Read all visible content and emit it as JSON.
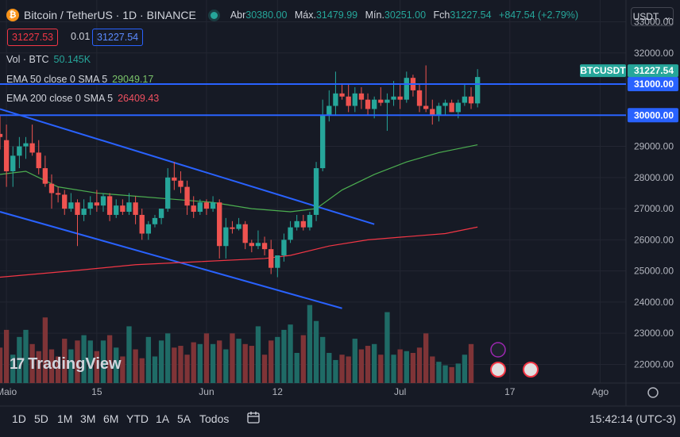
{
  "header": {
    "symbol": "Bitcoin / TetherUS · 1D · BINANCE",
    "open_label": "Abr",
    "open": "30380.00",
    "high_label": "Máx.",
    "high": "31479.99",
    "low_label": "Mín.",
    "low": "30251.00",
    "close_label": "Fch",
    "close": "31227.54",
    "change": "+847.54 (+2.79%)",
    "coin_glyph": "₿"
  },
  "trade": {
    "sell": "31227.53",
    "spread": "0.01",
    "buy": "31227.54"
  },
  "indicators": {
    "vol_name": "Vol · BTC",
    "vol_value": "50.145K",
    "ema50_name": "EMA 50 close 0 SMA 5",
    "ema50_value": "29049.17",
    "ema200_name": "EMA 200 close 0 SMA 5",
    "ema200_value": "26409.43"
  },
  "currency_button": "USDT",
  "timeframes": [
    "1D",
    "5D",
    "1M",
    "3M",
    "6M",
    "YTD",
    "1A",
    "5A",
    "Todos"
  ],
  "clock": "15:42:14 (UTC-3)",
  "logo_text": "TradingView",
  "logo_mark": "17",
  "colors": {
    "up": "#26a69a",
    "down": "#ef5350",
    "accent": "#2962ff",
    "ema50": "#4caf50",
    "ema200": "#f23645"
  },
  "chart_data": {
    "type": "candlestick",
    "title": "Bitcoin / TetherUS · 1D · BINANCE",
    "y_ticks": [
      22000,
      23000,
      24000,
      25000,
      26000,
      27000,
      28000,
      29000,
      30000,
      31000,
      32000,
      33000
    ],
    "y_tick_labels": [
      "22000.00",
      "23000.00",
      "24000.00",
      "25000.00",
      "26000.00",
      "27000.00",
      "28000.00",
      "29000.00",
      "30000.00",
      "31000.00",
      "32000.00",
      "33000.00"
    ],
    "ylim": [
      21400,
      33700
    ],
    "x_labels": [
      "Maio",
      "15",
      "Jun",
      "12",
      "Jul",
      "17",
      "Ago"
    ],
    "x_label_days": [
      0,
      14,
      31,
      42,
      61,
      78,
      92
    ],
    "x_range_days": [
      -1,
      96
    ],
    "candles": [
      {
        "d": -1,
        "o": 29400,
        "h": 30000,
        "l": 28900,
        "c": 29300
      },
      {
        "d": 0,
        "o": 29200,
        "h": 29700,
        "l": 27700,
        "c": 28200
      },
      {
        "d": 1,
        "o": 28200,
        "h": 29000,
        "l": 27700,
        "c": 28700
      },
      {
        "d": 2,
        "o": 28700,
        "h": 29300,
        "l": 28300,
        "c": 29000
      },
      {
        "d": 3,
        "o": 29000,
        "h": 29300,
        "l": 28600,
        "c": 29100
      },
      {
        "d": 4,
        "o": 29100,
        "h": 29700,
        "l": 28700,
        "c": 28800
      },
      {
        "d": 5,
        "o": 28800,
        "h": 29200,
        "l": 28100,
        "c": 28300
      },
      {
        "d": 6,
        "o": 28300,
        "h": 28700,
        "l": 27700,
        "c": 27800
      },
      {
        "d": 7,
        "o": 27800,
        "h": 28100,
        "l": 27000,
        "c": 27500
      },
      {
        "d": 8,
        "o": 27500,
        "h": 27700,
        "l": 27200,
        "c": 27450
      },
      {
        "d": 9,
        "o": 27450,
        "h": 27600,
        "l": 26800,
        "c": 27000
      },
      {
        "d": 10,
        "o": 27000,
        "h": 27500,
        "l": 26900,
        "c": 27200
      },
      {
        "d": 11,
        "o": 27200,
        "h": 27300,
        "l": 25800,
        "c": 26800
      },
      {
        "d": 12,
        "o": 26800,
        "h": 27300,
        "l": 26600,
        "c": 27000
      },
      {
        "d": 13,
        "o": 27000,
        "h": 27400,
        "l": 26800,
        "c": 27200
      },
      {
        "d": 14,
        "o": 27200,
        "h": 27600,
        "l": 26900,
        "c": 27100
      },
      {
        "d": 15,
        "o": 27100,
        "h": 27500,
        "l": 26900,
        "c": 27400
      },
      {
        "d": 16,
        "o": 27400,
        "h": 27500,
        "l": 26600,
        "c": 26800
      },
      {
        "d": 17,
        "o": 26800,
        "h": 27300,
        "l": 26700,
        "c": 27100
      },
      {
        "d": 18,
        "o": 27100,
        "h": 27300,
        "l": 26800,
        "c": 26900
      },
      {
        "d": 19,
        "o": 26900,
        "h": 27500,
        "l": 26800,
        "c": 27200
      },
      {
        "d": 20,
        "o": 27200,
        "h": 27400,
        "l": 26500,
        "c": 26800
      },
      {
        "d": 21,
        "o": 26800,
        "h": 27000,
        "l": 26000,
        "c": 26200
      },
      {
        "d": 22,
        "o": 26200,
        "h": 26600,
        "l": 26000,
        "c": 26500
      },
      {
        "d": 23,
        "o": 26500,
        "h": 26800,
        "l": 26400,
        "c": 26700
      },
      {
        "d": 24,
        "o": 26700,
        "h": 27000,
        "l": 26500,
        "c": 27000
      },
      {
        "d": 25,
        "o": 27000,
        "h": 28300,
        "l": 26900,
        "c": 28000
      },
      {
        "d": 26,
        "o": 28000,
        "h": 28500,
        "l": 27600,
        "c": 27900
      },
      {
        "d": 27,
        "o": 27900,
        "h": 28200,
        "l": 27500,
        "c": 27700
      },
      {
        "d": 28,
        "o": 27700,
        "h": 27900,
        "l": 26800,
        "c": 27100
      },
      {
        "d": 29,
        "o": 27100,
        "h": 27400,
        "l": 26700,
        "c": 26900
      },
      {
        "d": 30,
        "o": 26900,
        "h": 27300,
        "l": 26800,
        "c": 27200
      },
      {
        "d": 31,
        "o": 27200,
        "h": 27300,
        "l": 26800,
        "c": 27000
      },
      {
        "d": 32,
        "o": 27000,
        "h": 27400,
        "l": 26900,
        "c": 27200
      },
      {
        "d": 33,
        "o": 27200,
        "h": 27300,
        "l": 25400,
        "c": 25800
      },
      {
        "d": 34,
        "o": 25800,
        "h": 26700,
        "l": 25400,
        "c": 26400
      },
      {
        "d": 35,
        "o": 26400,
        "h": 26600,
        "l": 26200,
        "c": 26350
      },
      {
        "d": 36,
        "o": 26350,
        "h": 26700,
        "l": 26300,
        "c": 26500
      },
      {
        "d": 37,
        "o": 26500,
        "h": 26600,
        "l": 25700,
        "c": 25900
      },
      {
        "d": 38,
        "o": 25900,
        "h": 26000,
        "l": 25600,
        "c": 25800
      },
      {
        "d": 39,
        "o": 25800,
        "h": 26300,
        "l": 25700,
        "c": 25900
      },
      {
        "d": 40,
        "o": 25900,
        "h": 26100,
        "l": 25500,
        "c": 25700
      },
      {
        "d": 41,
        "o": 25700,
        "h": 26000,
        "l": 24900,
        "c": 25100
      },
      {
        "d": 42,
        "o": 25100,
        "h": 25500,
        "l": 24800,
        "c": 25500
      },
      {
        "d": 43,
        "o": 25500,
        "h": 26200,
        "l": 25300,
        "c": 26000
      },
      {
        "d": 44,
        "o": 26000,
        "h": 26600,
        "l": 25900,
        "c": 26400
      },
      {
        "d": 45,
        "o": 26400,
        "h": 26800,
        "l": 26300,
        "c": 26600
      },
      {
        "d": 46,
        "o": 26600,
        "h": 26800,
        "l": 26300,
        "c": 26400
      },
      {
        "d": 47,
        "o": 26400,
        "h": 26900,
        "l": 26300,
        "c": 26800
      },
      {
        "d": 48,
        "o": 26800,
        "h": 28500,
        "l": 26600,
        "c": 28300
      },
      {
        "d": 49,
        "o": 28300,
        "h": 30500,
        "l": 28200,
        "c": 30000
      },
      {
        "d": 50,
        "o": 30000,
        "h": 30800,
        "l": 29800,
        "c": 30300
      },
      {
        "d": 51,
        "o": 30300,
        "h": 31400,
        "l": 30000,
        "c": 30700
      },
      {
        "d": 52,
        "o": 30700,
        "h": 31000,
        "l": 30500,
        "c": 30600
      },
      {
        "d": 53,
        "o": 30600,
        "h": 31000,
        "l": 30100,
        "c": 30300
      },
      {
        "d": 54,
        "o": 30300,
        "h": 30900,
        "l": 30100,
        "c": 30700
      },
      {
        "d": 55,
        "o": 30700,
        "h": 30900,
        "l": 30200,
        "c": 30500
      },
      {
        "d": 56,
        "o": 30500,
        "h": 30700,
        "l": 30000,
        "c": 30200
      },
      {
        "d": 57,
        "o": 30200,
        "h": 30600,
        "l": 29900,
        "c": 30500
      },
      {
        "d": 58,
        "o": 30500,
        "h": 30900,
        "l": 30300,
        "c": 30400
      },
      {
        "d": 59,
        "o": 30400,
        "h": 30700,
        "l": 29500,
        "c": 30500
      },
      {
        "d": 60,
        "o": 30500,
        "h": 31100,
        "l": 30300,
        "c": 30600
      },
      {
        "d": 61,
        "o": 30600,
        "h": 31000,
        "l": 30200,
        "c": 30500
      },
      {
        "d": 62,
        "o": 30500,
        "h": 31400,
        "l": 30400,
        "c": 31200
      },
      {
        "d": 63,
        "o": 31200,
        "h": 31300,
        "l": 30600,
        "c": 30800
      },
      {
        "d": 64,
        "o": 30800,
        "h": 31000,
        "l": 30100,
        "c": 30300
      },
      {
        "d": 65,
        "o": 30300,
        "h": 31600,
        "l": 30100,
        "c": 30200
      },
      {
        "d": 66,
        "o": 30200,
        "h": 30500,
        "l": 29700,
        "c": 30000
      },
      {
        "d": 67,
        "o": 30000,
        "h": 30400,
        "l": 29800,
        "c": 30300
      },
      {
        "d": 68,
        "o": 30300,
        "h": 30500,
        "l": 30000,
        "c": 30400
      },
      {
        "d": 69,
        "o": 30400,
        "h": 30500,
        "l": 30100,
        "c": 30100
      },
      {
        "d": 70,
        "o": 30100,
        "h": 30500,
        "l": 29900,
        "c": 30400
      },
      {
        "d": 71,
        "o": 30400,
        "h": 31000,
        "l": 30300,
        "c": 30600
      },
      {
        "d": 72,
        "o": 30600,
        "h": 30900,
        "l": 30200,
        "c": 30380
      },
      {
        "d": 73,
        "o": 30380,
        "h": 31480,
        "l": 30251,
        "c": 31227
      }
    ],
    "volumes": [
      2,
      3,
      1.6,
      2.6,
      3,
      2.2,
      1.8,
      3.7,
      1.9,
      1.5,
      2.5,
      1.9,
      2.4,
      2.7,
      2.4,
      1.8,
      2.4,
      2.7,
      2.0,
      1.5,
      3.2,
      1.9,
      1.4,
      2.6,
      1.5,
      2.4,
      2.8,
      2.0,
      2.1,
      1.6,
      2.3,
      2.2,
      2.8,
      2.2,
      2.4,
      1.9,
      2.8,
      2.5,
      2.2,
      2.1,
      3.2,
      1.6,
      2.4,
      2.6,
      3.0,
      3.3,
      1.7,
      2.7,
      4.4,
      3.5,
      2.6,
      1.7,
      1.3,
      1.6,
      1.5,
      2.5,
      1.9,
      2.1,
      2.2,
      1.6,
      4.0,
      1.6,
      1.9,
      1.8,
      1.7,
      2.0,
      2.8,
      1.5,
      1.2,
      1.0,
      0.9,
      1.1,
      1.6,
      2.2
    ],
    "ema50": [
      [
        -1,
        28100
      ],
      [
        3,
        28200
      ],
      [
        8,
        27700
      ],
      [
        14,
        27500
      ],
      [
        20,
        27400
      ],
      [
        26,
        27300
      ],
      [
        32,
        27200
      ],
      [
        38,
        27000
      ],
      [
        44,
        26900
      ],
      [
        48,
        27000
      ],
      [
        52,
        27600
      ],
      [
        57,
        28100
      ],
      [
        62,
        28500
      ],
      [
        67,
        28800
      ],
      [
        73,
        29050
      ]
    ],
    "ema200": [
      [
        -1,
        24800
      ],
      [
        10,
        25000
      ],
      [
        20,
        25200
      ],
      [
        30,
        25300
      ],
      [
        40,
        25400
      ],
      [
        44,
        25500
      ],
      [
        50,
        25800
      ],
      [
        56,
        26000
      ],
      [
        62,
        26100
      ],
      [
        68,
        26200
      ],
      [
        73,
        26410
      ]
    ],
    "hlines": [
      {
        "value": 31000,
        "label": "31000.00"
      },
      {
        "value": 30000,
        "label": "30000.00"
      }
    ],
    "channel_upper": [
      [
        -1,
        30200
      ],
      [
        57,
        26500
      ]
    ],
    "channel_lower": [
      [
        -1,
        26900
      ],
      [
        52,
        23800
      ]
    ],
    "last_price": {
      "label": "BTCUSDT",
      "value": "31227.54",
      "y": 31227.54
    },
    "volume_axis_max": 5.5,
    "x_axis_marker": "17"
  }
}
